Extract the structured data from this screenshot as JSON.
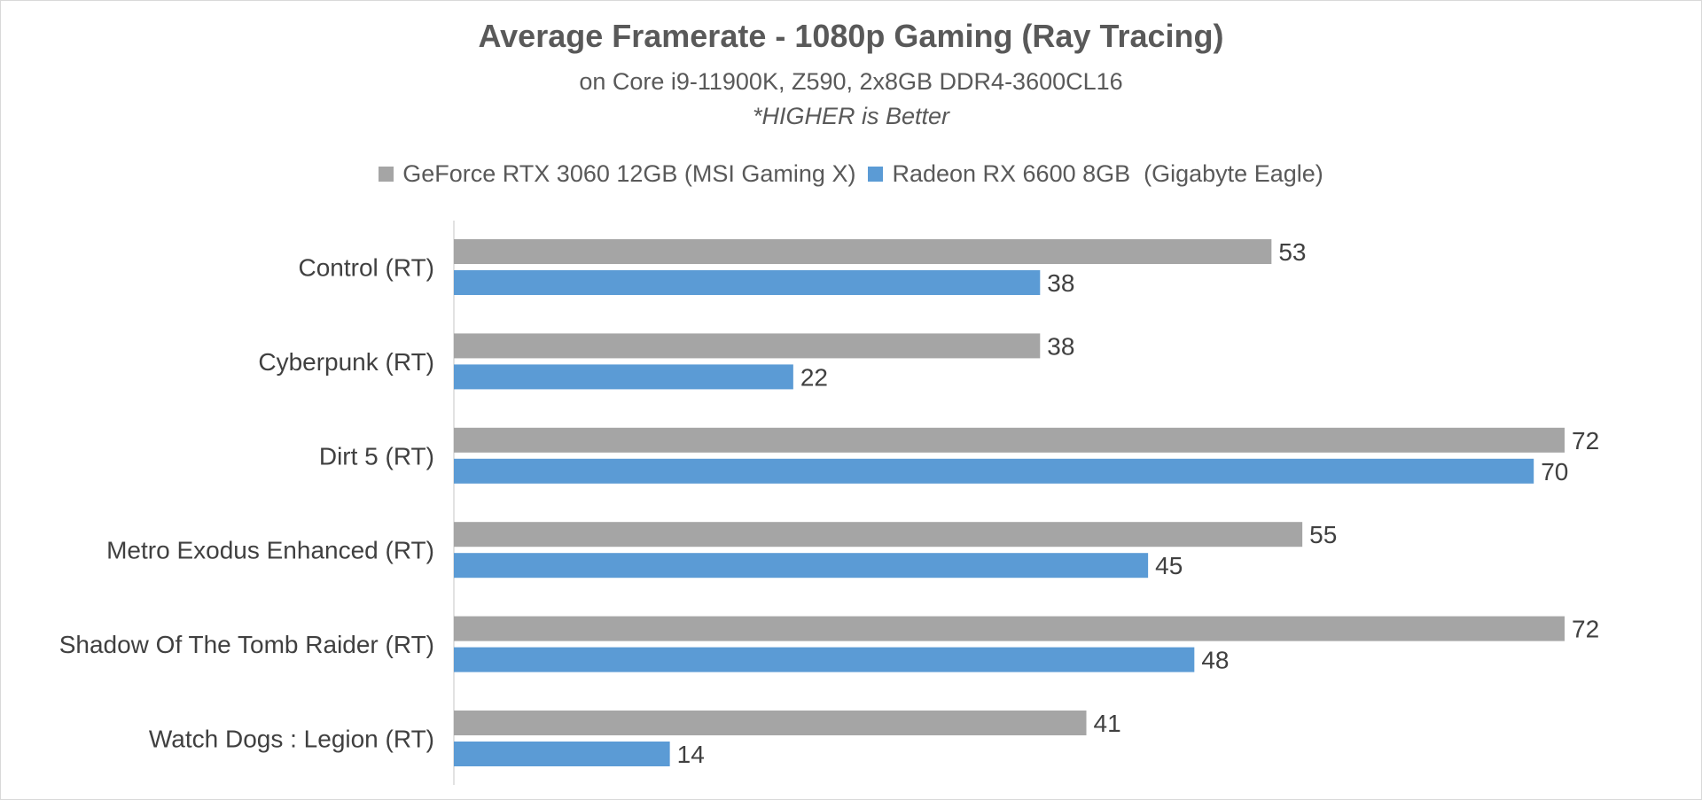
{
  "chart_data": {
    "type": "bar",
    "orientation": "horizontal",
    "title": "Average Framerate - 1080p Gaming (Ray Tracing)",
    "subtitle": "on Core i9-11900K, Z590, 2x8GB DDR4-3600CL16",
    "note": "*HIGHER is Better",
    "categories": [
      "Control (RT)",
      "Cyberpunk (RT)",
      "Dirt 5 (RT)",
      "Metro Exodus Enhanced (RT)",
      "Shadow Of The Tomb Raider (RT)",
      "Watch Dogs : Legion (RT)"
    ],
    "series": [
      {
        "name": "GeForce RTX 3060 12GB (MSI Gaming X)",
        "color": "#a5a5a5",
        "values": [
          53,
          38,
          72,
          55,
          72,
          41
        ]
      },
      {
        "name": "Radeon RX 6600 8GB  (Gigabyte Eagle)",
        "color": "#5b9bd5",
        "values": [
          38,
          22,
          70,
          45,
          48,
          14
        ]
      }
    ],
    "xlim": [
      0,
      72
    ],
    "grid": false,
    "legend_position": "top",
    "xlabel": "",
    "ylabel": ""
  }
}
